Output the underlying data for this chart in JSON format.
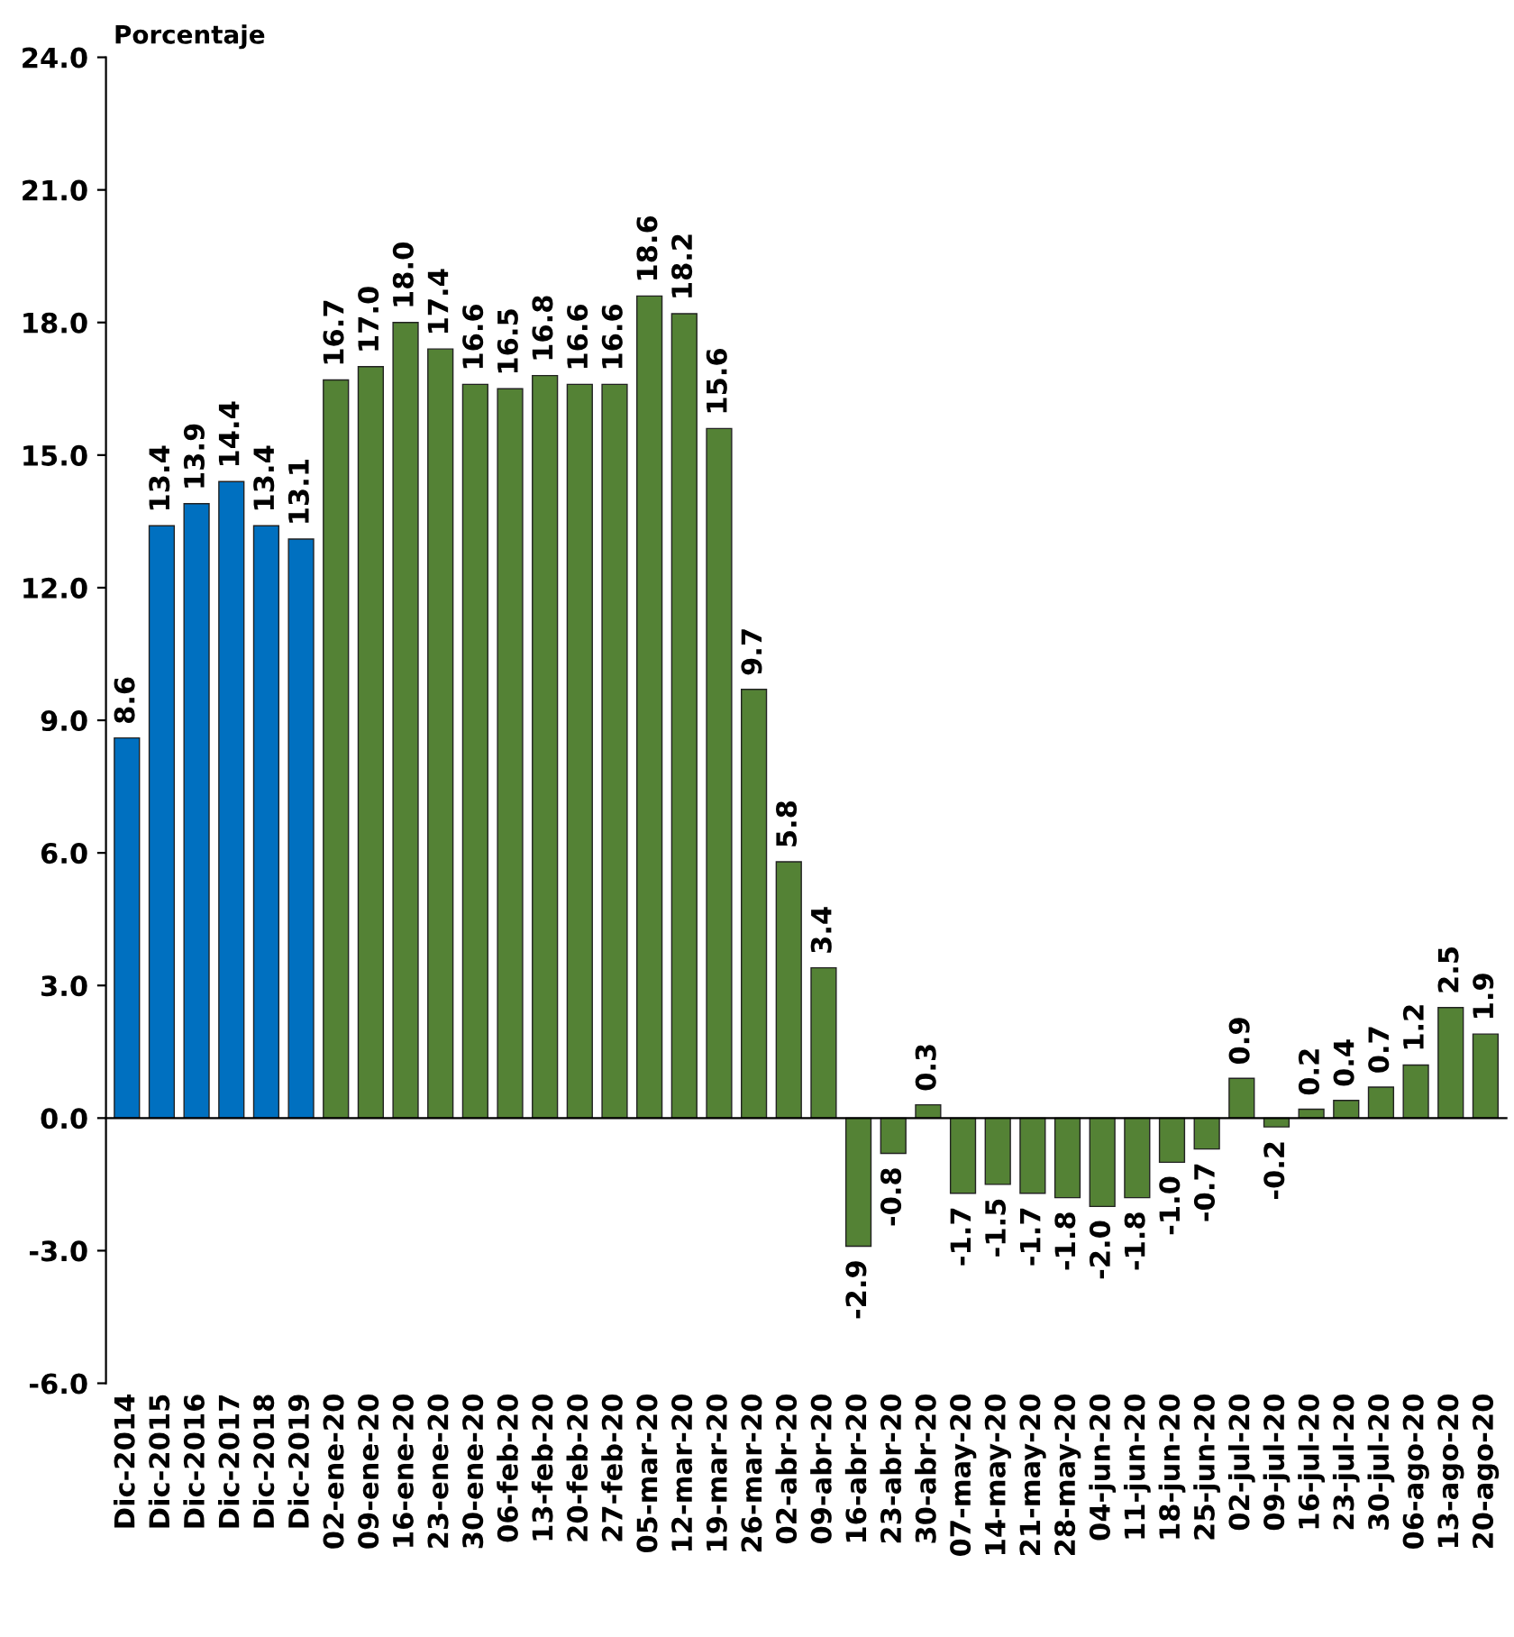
{
  "chart_data": {
    "type": "bar",
    "ylabel": "Porcentaje",
    "categories": [
      "Dic-2014",
      "Dic-2015",
      "Dic-2016",
      "Dic-2017",
      "Dic-2018",
      "Dic-2019",
      "02-ene-20",
      "09-ene-20",
      "16-ene-20",
      "23-ene-20",
      "30-ene-20",
      "06-feb-20",
      "13-feb-20",
      "20-feb-20",
      "27-feb-20",
      "05-mar-20",
      "12-mar-20",
      "19-mar-20",
      "26-mar-20",
      "02-abr-20",
      "09-abr-20",
      "16-abr-20",
      "23-abr-20",
      "30-abr-20",
      "07-may-20",
      "14-may-20",
      "21-may-20",
      "28-may-20",
      "04-jun-20",
      "11-jun-20",
      "18-jun-20",
      "25-jun-20",
      "02-jul-20",
      "09-jul-20",
      "16-jul-20",
      "23-jul-20",
      "30-jul-20",
      "06-ago-20",
      "13-ago-20",
      "20-ago-20"
    ],
    "values": [
      8.6,
      13.4,
      13.9,
      14.4,
      13.4,
      13.1,
      16.7,
      17.0,
      18.0,
      17.4,
      16.6,
      16.5,
      16.8,
      16.6,
      16.6,
      18.6,
      18.2,
      15.6,
      9.7,
      5.8,
      3.4,
      -2.9,
      -0.8,
      0.3,
      -1.7,
      -1.5,
      -1.7,
      -1.8,
      -2.0,
      -1.8,
      -1.0,
      -0.7,
      0.9,
      -0.2,
      0.2,
      0.4,
      0.7,
      1.2,
      2.5,
      1.9
    ],
    "colors": [
      "#0070c0",
      "#0070c0",
      "#0070c0",
      "#0070c0",
      "#0070c0",
      "#0070c0",
      "#548235",
      "#548235",
      "#548235",
      "#548235",
      "#548235",
      "#548235",
      "#548235",
      "#548235",
      "#548235",
      "#548235",
      "#548235",
      "#548235",
      "#548235",
      "#548235",
      "#548235",
      "#548235",
      "#548235",
      "#548235",
      "#548235",
      "#548235",
      "#548235",
      "#548235",
      "#548235",
      "#548235",
      "#548235",
      "#548235",
      "#548235",
      "#548235",
      "#548235",
      "#548235",
      "#548235",
      "#548235",
      "#548235",
      "#548235"
    ],
    "ylim": [
      -6,
      24
    ],
    "yticks": [
      {
        "value": -6,
        "label": "-6.0"
      },
      {
        "value": -3,
        "label": "-3.0"
      },
      {
        "value": 0,
        "label": "0.0"
      },
      {
        "value": 3,
        "label": "3.0"
      },
      {
        "value": 6,
        "label": "6.0"
      },
      {
        "value": 9,
        "label": "9.0"
      },
      {
        "value": 12,
        "label": "12.0"
      },
      {
        "value": 15,
        "label": "15.0"
      },
      {
        "value": 18,
        "label": "18.0"
      },
      {
        "value": 21,
        "label": "21.0"
      },
      {
        "value": 24,
        "label": "24.0"
      }
    ],
    "value_labels": [
      "8.6",
      "13.4",
      "13.9",
      "14.4",
      "13.4",
      "13.1",
      "16.7",
      "17.0",
      "18.0",
      "17.4",
      "16.6",
      "16.5",
      "16.8",
      "16.6",
      "16.6",
      "18.6",
      "18.2",
      "15.6",
      "9.7",
      "5.8",
      "3.4",
      "-2.9",
      "-0.8",
      "0.3",
      "-1.7",
      "-1.5",
      "-1.7",
      "-1.8",
      "-2.0",
      "-1.8",
      "-1.0",
      "-0.7",
      "0.9",
      "-0.2",
      "0.2",
      "0.4",
      "0.7",
      "1.2",
      "2.5",
      "1.9"
    ]
  }
}
